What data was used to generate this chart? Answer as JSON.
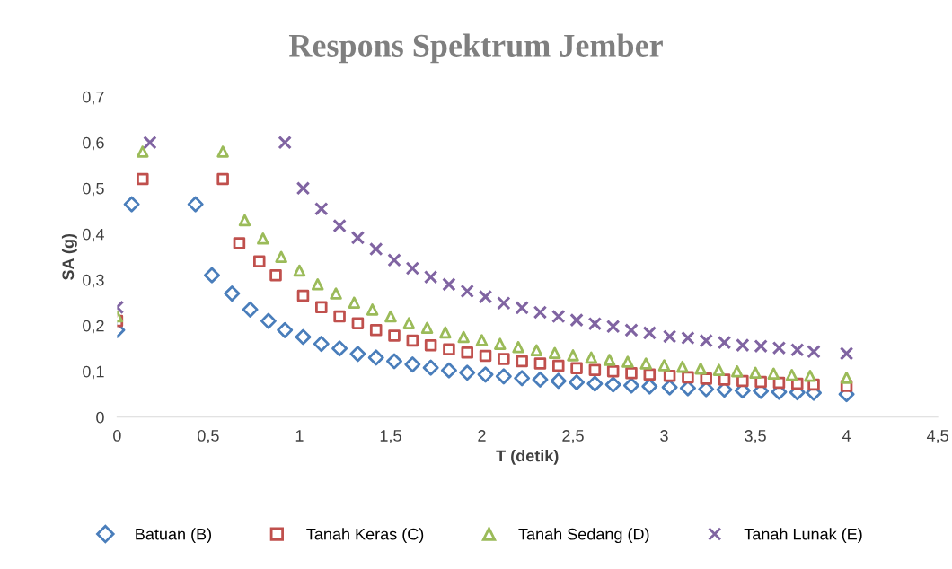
{
  "chart_data": {
    "type": "scatter",
    "title": "Respons Spektrum Jember",
    "xlabel": "T (detik)",
    "ylabel": "SA (g)",
    "xlim": [
      0,
      4.5
    ],
    "xticks": [
      {
        "value": 0,
        "label": "0"
      },
      {
        "value": 0.5,
        "label": "0,5"
      },
      {
        "value": 1,
        "label": "1"
      },
      {
        "value": 1.5,
        "label": "1,5"
      },
      {
        "value": 2,
        "label": "2"
      },
      {
        "value": 2.5,
        "label": "2,5"
      },
      {
        "value": 3,
        "label": "3"
      },
      {
        "value": 3.5,
        "label": "3,5"
      },
      {
        "value": 4,
        "label": "4"
      },
      {
        "value": 4.5,
        "label": "4,5"
      }
    ],
    "ylim": [
      0,
      0.7
    ],
    "yticks": [
      {
        "value": 0,
        "label": "0"
      },
      {
        "value": 0.1,
        "label": "0,1"
      },
      {
        "value": 0.2,
        "label": "0,2"
      },
      {
        "value": 0.3,
        "label": "0,3"
      },
      {
        "value": 0.4,
        "label": "0,4"
      },
      {
        "value": 0.5,
        "label": "0,5"
      },
      {
        "value": 0.6,
        "label": "0,6"
      },
      {
        "value": 0.7,
        "label": "0,7"
      }
    ],
    "grid": false,
    "legend": "bottom",
    "series": [
      {
        "name": "Batuan (B)",
        "color": "#4a7ebb",
        "marker": "diamond",
        "x": [
          0,
          0.08,
          0.43,
          0.52,
          0.63,
          0.73,
          0.83,
          0.92,
          1.02,
          1.12,
          1.22,
          1.32,
          1.42,
          1.52,
          1.62,
          1.72,
          1.82,
          1.92,
          2.02,
          2.12,
          2.22,
          2.32,
          2.42,
          2.52,
          2.62,
          2.72,
          2.82,
          2.92,
          3.03,
          3.13,
          3.23,
          3.33,
          3.43,
          3.53,
          3.63,
          3.73,
          3.82,
          4.0
        ],
        "values": [
          0.19,
          0.465,
          0.465,
          0.31,
          0.27,
          0.235,
          0.21,
          0.19,
          0.175,
          0.16,
          0.15,
          0.138,
          0.13,
          0.122,
          0.115,
          0.108,
          0.102,
          0.097,
          0.093,
          0.089,
          0.085,
          0.082,
          0.079,
          0.076,
          0.073,
          0.071,
          0.069,
          0.067,
          0.065,
          0.063,
          0.061,
          0.06,
          0.058,
          0.057,
          0.055,
          0.054,
          0.053,
          0.05
        ]
      },
      {
        "name": "Tanah Keras (C)",
        "color": "#c0504d",
        "marker": "square",
        "x": [
          0,
          0.14,
          0.58,
          0.67,
          0.78,
          0.87,
          1.02,
          1.12,
          1.22,
          1.32,
          1.42,
          1.52,
          1.62,
          1.72,
          1.82,
          1.92,
          2.02,
          2.12,
          2.22,
          2.32,
          2.42,
          2.52,
          2.62,
          2.72,
          2.82,
          2.92,
          3.03,
          3.13,
          3.23,
          3.33,
          3.43,
          3.53,
          3.63,
          3.73,
          3.82,
          4.0
        ],
        "values": [
          0.21,
          0.52,
          0.52,
          0.38,
          0.34,
          0.31,
          0.265,
          0.24,
          0.22,
          0.205,
          0.19,
          0.178,
          0.167,
          0.157,
          0.148,
          0.141,
          0.134,
          0.127,
          0.122,
          0.117,
          0.112,
          0.107,
          0.103,
          0.1,
          0.096,
          0.093,
          0.09,
          0.087,
          0.084,
          0.082,
          0.079,
          0.077,
          0.075,
          0.073,
          0.071,
          0.068
        ]
      },
      {
        "name": "Tanah Sedang (D)",
        "color": "#9bbb59",
        "marker": "triangle",
        "x": [
          0,
          0.14,
          0.58,
          0.7,
          0.8,
          0.9,
          1.0,
          1.1,
          1.2,
          1.3,
          1.4,
          1.5,
          1.6,
          1.7,
          1.8,
          1.9,
          2.0,
          2.1,
          2.2,
          2.3,
          2.4,
          2.5,
          2.6,
          2.7,
          2.8,
          2.9,
          3.0,
          3.1,
          3.2,
          3.3,
          3.4,
          3.5,
          3.6,
          3.7,
          3.8,
          4.0
        ],
        "values": [
          0.22,
          0.58,
          0.58,
          0.43,
          0.39,
          0.35,
          0.32,
          0.29,
          0.27,
          0.25,
          0.235,
          0.22,
          0.205,
          0.195,
          0.185,
          0.175,
          0.168,
          0.16,
          0.153,
          0.146,
          0.14,
          0.135,
          0.13,
          0.125,
          0.121,
          0.117,
          0.113,
          0.11,
          0.106,
          0.103,
          0.1,
          0.097,
          0.095,
          0.092,
          0.09,
          0.086
        ]
      },
      {
        "name": "Tanah Lunak (E)",
        "color": "#8064a2",
        "marker": "cross",
        "x": [
          0,
          0.18,
          0.92,
          1.02,
          1.12,
          1.22,
          1.32,
          1.42,
          1.52,
          1.62,
          1.72,
          1.82,
          1.92,
          2.02,
          2.12,
          2.22,
          2.32,
          2.42,
          2.52,
          2.62,
          2.72,
          2.82,
          2.92,
          3.03,
          3.13,
          3.23,
          3.33,
          3.43,
          3.53,
          3.63,
          3.73,
          3.82,
          4.0
        ],
        "values": [
          0.24,
          0.6,
          0.6,
          0.5,
          0.455,
          0.418,
          0.392,
          0.367,
          0.343,
          0.325,
          0.306,
          0.29,
          0.275,
          0.263,
          0.249,
          0.239,
          0.229,
          0.22,
          0.212,
          0.204,
          0.198,
          0.19,
          0.184,
          0.176,
          0.173,
          0.167,
          0.163,
          0.157,
          0.155,
          0.151,
          0.147,
          0.143,
          0.139
        ]
      }
    ]
  }
}
